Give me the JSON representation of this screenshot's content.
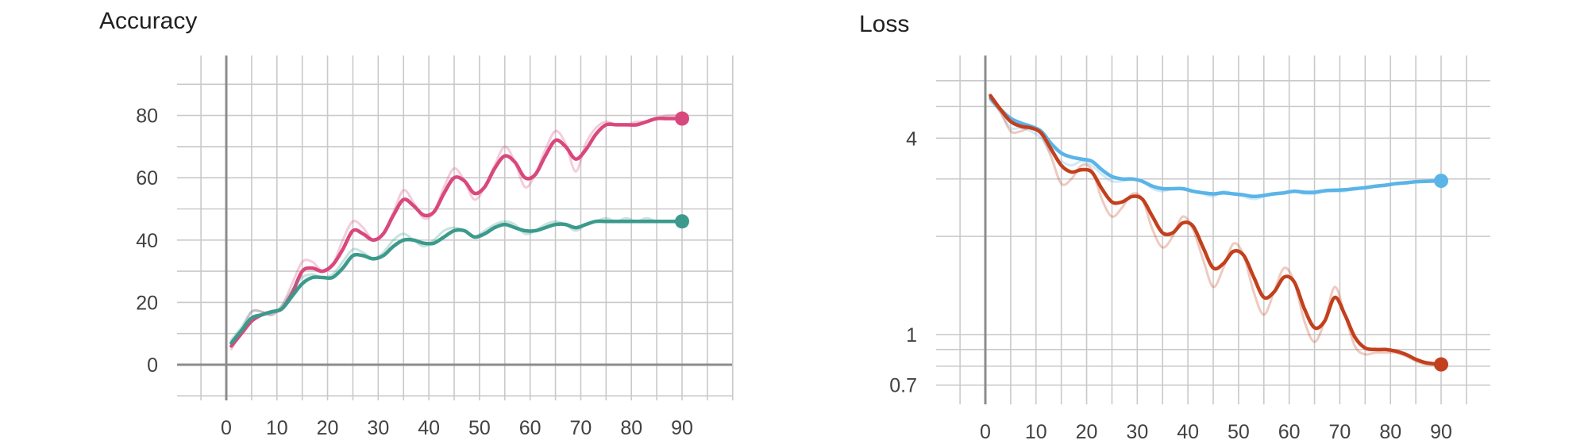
{
  "chart_data": [
    {
      "type": "line",
      "title": "Accuracy",
      "xlabel": "",
      "ylabel": "",
      "y_scale": "linear",
      "xlim": [
        -10,
        100
      ],
      "ylim": [
        -10,
        100
      ],
      "x_ticks": [
        0,
        10,
        20,
        30,
        40,
        50,
        60,
        70,
        80,
        90
      ],
      "y_ticks": [
        0,
        20,
        40,
        60,
        80
      ],
      "grid": true,
      "series": [
        {
          "color": "#d9487c",
          "x": [
            1,
            3,
            5,
            7,
            9,
            11,
            13,
            15,
            17,
            19,
            21,
            23,
            25,
            27,
            29,
            31,
            33,
            35,
            37,
            39,
            41,
            43,
            45,
            47,
            49,
            51,
            53,
            55,
            57,
            59,
            61,
            63,
            65,
            67,
            69,
            71,
            73,
            75,
            77,
            79,
            81,
            83,
            85,
            87,
            90
          ],
          "raw": [
            5,
            11,
            17,
            17,
            16,
            19,
            26,
            33,
            33,
            30,
            32,
            40,
            46,
            44,
            40,
            42,
            49,
            56,
            52,
            47,
            49,
            57,
            63,
            59,
            53,
            57,
            64,
            70,
            65,
            57,
            61,
            69,
            75,
            71,
            62,
            71,
            76,
            78,
            77,
            77,
            78,
            78,
            79,
            80,
            80
          ],
          "smoothed": [
            6,
            10,
            14,
            16,
            17,
            18,
            23,
            30,
            31,
            30,
            32,
            37,
            43,
            42,
            40,
            42,
            48,
            53,
            51,
            48,
            49,
            55,
            60,
            59,
            55,
            57,
            63,
            67,
            65,
            60,
            61,
            67,
            72,
            70,
            66,
            69,
            74,
            77,
            77,
            77,
            77,
            78,
            79,
            79,
            79
          ]
        },
        {
          "color": "#3b9a8c",
          "x": [
            1,
            3,
            5,
            7,
            9,
            11,
            13,
            15,
            17,
            19,
            21,
            23,
            25,
            27,
            29,
            31,
            33,
            35,
            37,
            39,
            41,
            43,
            45,
            47,
            49,
            51,
            53,
            55,
            57,
            59,
            61,
            63,
            65,
            67,
            69,
            71,
            73,
            75,
            77,
            79,
            81,
            83,
            85,
            87,
            90
          ],
          "raw": [
            8,
            12,
            17,
            17,
            16,
            19,
            24,
            28,
            29,
            28,
            29,
            33,
            37,
            36,
            34,
            36,
            40,
            42,
            40,
            38,
            40,
            43,
            44,
            43,
            41,
            43,
            45,
            46,
            45,
            42,
            43,
            45,
            46,
            45,
            43,
            45,
            46,
            47,
            46,
            47,
            46,
            47,
            46,
            46,
            46
          ],
          "smoothed": [
            7,
            11,
            15,
            16,
            17,
            18,
            22,
            26,
            28,
            28,
            28,
            31,
            35,
            35,
            34,
            35,
            38,
            40,
            40,
            39,
            39,
            41,
            43,
            43,
            41,
            42,
            44,
            45,
            44,
            43,
            43,
            44,
            45,
            45,
            44,
            45,
            46,
            46,
            46,
            46,
            46,
            46,
            46,
            46,
            46
          ]
        }
      ]
    },
    {
      "type": "line",
      "title": "Loss",
      "xlabel": "",
      "ylabel": "",
      "y_scale": "log",
      "xlim": [
        -10,
        100
      ],
      "ylim": [
        0.6,
        6.8
      ],
      "x_ticks": [
        0,
        10,
        20,
        30,
        40,
        50,
        60,
        70,
        80,
        90
      ],
      "y_ticks": [
        0.7,
        1,
        4
      ],
      "y_minor_ticks": [
        0.8,
        0.9,
        2,
        3,
        5,
        6
      ],
      "grid": true,
      "series": [
        {
          "color": "#5ab4e8",
          "x": [
            1,
            3,
            5,
            7,
            9,
            11,
            13,
            15,
            17,
            19,
            21,
            23,
            25,
            27,
            29,
            31,
            33,
            35,
            37,
            39,
            41,
            43,
            45,
            47,
            49,
            51,
            53,
            55,
            57,
            59,
            61,
            63,
            65,
            67,
            69,
            71,
            73,
            75,
            77,
            79,
            81,
            83,
            85,
            87,
            90
          ],
          "raw": [
            5.2,
            4.8,
            4.3,
            4.3,
            4.2,
            4.0,
            3.6,
            3.4,
            3.3,
            3.4,
            3.3,
            3.1,
            2.95,
            2.95,
            3.0,
            2.95,
            2.8,
            2.75,
            2.8,
            2.8,
            2.75,
            2.7,
            2.65,
            2.75,
            2.7,
            2.65,
            2.6,
            2.65,
            2.7,
            2.7,
            2.75,
            2.7,
            2.7,
            2.75,
            2.75,
            2.75,
            2.8,
            2.8,
            2.85,
            2.85,
            2.9,
            2.9,
            2.95,
            2.95,
            2.95
          ],
          "smoothed": [
            5.3,
            4.9,
            4.6,
            4.45,
            4.35,
            4.2,
            3.85,
            3.6,
            3.5,
            3.45,
            3.4,
            3.2,
            3.05,
            3.0,
            3.0,
            2.95,
            2.85,
            2.8,
            2.8,
            2.8,
            2.75,
            2.72,
            2.7,
            2.72,
            2.7,
            2.68,
            2.65,
            2.67,
            2.7,
            2.72,
            2.75,
            2.73,
            2.73,
            2.76,
            2.77,
            2.78,
            2.8,
            2.82,
            2.85,
            2.87,
            2.9,
            2.92,
            2.94,
            2.95,
            2.96
          ]
        },
        {
          "color": "#c2401e",
          "x": [
            1,
            3,
            5,
            7,
            9,
            11,
            13,
            15,
            17,
            19,
            21,
            23,
            25,
            27,
            29,
            31,
            33,
            35,
            37,
            39,
            41,
            43,
            45,
            47,
            49,
            51,
            53,
            55,
            57,
            59,
            61,
            63,
            65,
            67,
            69,
            71,
            73,
            75,
            77,
            79,
            81,
            83,
            85,
            87,
            90
          ],
          "raw": [
            5.3,
            4.8,
            4.2,
            4.2,
            4.3,
            4.1,
            3.5,
            2.9,
            3.0,
            3.3,
            3.2,
            2.6,
            2.3,
            2.45,
            2.7,
            2.6,
            2.1,
            1.85,
            2.0,
            2.3,
            2.1,
            1.7,
            1.4,
            1.6,
            1.9,
            1.75,
            1.35,
            1.15,
            1.35,
            1.6,
            1.45,
            1.1,
            0.95,
            1.1,
            1.4,
            1.15,
            0.92,
            0.87,
            0.88,
            0.88,
            0.88,
            0.86,
            0.83,
            0.81,
            0.81
          ],
          "smoothed": [
            5.4,
            4.9,
            4.5,
            4.35,
            4.3,
            4.15,
            3.7,
            3.3,
            3.15,
            3.2,
            3.15,
            2.8,
            2.55,
            2.55,
            2.65,
            2.6,
            2.3,
            2.05,
            2.05,
            2.2,
            2.15,
            1.85,
            1.6,
            1.65,
            1.8,
            1.75,
            1.5,
            1.3,
            1.35,
            1.5,
            1.45,
            1.2,
            1.05,
            1.1,
            1.3,
            1.15,
            0.98,
            0.91,
            0.9,
            0.9,
            0.89,
            0.87,
            0.84,
            0.82,
            0.81
          ]
        }
      ]
    }
  ]
}
